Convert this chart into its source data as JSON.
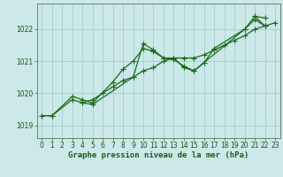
{
  "xlabel": "Graphe pression niveau de la mer (hPa)",
  "background_color": "#cce8e8",
  "grid_color": "#99cccc",
  "line_color": "#1a6b1a",
  "ylim": [
    1018.6,
    1022.8
  ],
  "xlim": [
    -0.5,
    23.5
  ],
  "yticks": [
    1019,
    1020,
    1021,
    1022
  ],
  "xticks": [
    0,
    1,
    2,
    3,
    4,
    5,
    6,
    7,
    8,
    9,
    10,
    11,
    12,
    13,
    14,
    15,
    16,
    17,
    18,
    19,
    20,
    21,
    22,
    23
  ],
  "series_data": {
    "line1_x": [
      0,
      1,
      3,
      4,
      5,
      9,
      10,
      11,
      12,
      13,
      14,
      15,
      16,
      17,
      20,
      21,
      22
    ],
    "line1_y": [
      1019.3,
      1019.3,
      1019.8,
      1019.7,
      1019.65,
      1020.5,
      1021.55,
      1021.35,
      1021.1,
      1021.1,
      1020.8,
      1020.7,
      1020.95,
      1021.4,
      1022.0,
      1022.4,
      1022.1
    ],
    "line2_x": [
      0,
      1,
      3,
      4,
      5,
      7,
      8,
      9,
      10,
      11,
      12,
      13,
      14,
      15,
      20,
      21,
      22
    ],
    "line2_y": [
      1019.3,
      1019.3,
      1019.9,
      1019.8,
      1019.7,
      1020.35,
      1020.75,
      1021.0,
      1021.4,
      1021.3,
      1021.1,
      1021.05,
      1020.85,
      1020.7,
      1022.0,
      1022.3,
      1022.1
    ],
    "line3_x": [
      4,
      5,
      6,
      7,
      8,
      9,
      10,
      11,
      12,
      13,
      14,
      15,
      16,
      17,
      18,
      19,
      20,
      21,
      22,
      23
    ],
    "line3_y": [
      1019.7,
      1019.8,
      1020.0,
      1020.2,
      1020.4,
      1020.5,
      1020.7,
      1020.8,
      1021.0,
      1021.1,
      1021.1,
      1021.1,
      1021.2,
      1021.35,
      1021.5,
      1021.65,
      1021.8,
      1022.0,
      1022.1,
      1022.2
    ],
    "line4_x": [
      21,
      22
    ],
    "line4_y": [
      1022.4,
      1022.35
    ]
  },
  "marker_size": 2.5,
  "line_width": 0.9,
  "tick_fontsize": 5.5,
  "label_fontsize": 6.5
}
